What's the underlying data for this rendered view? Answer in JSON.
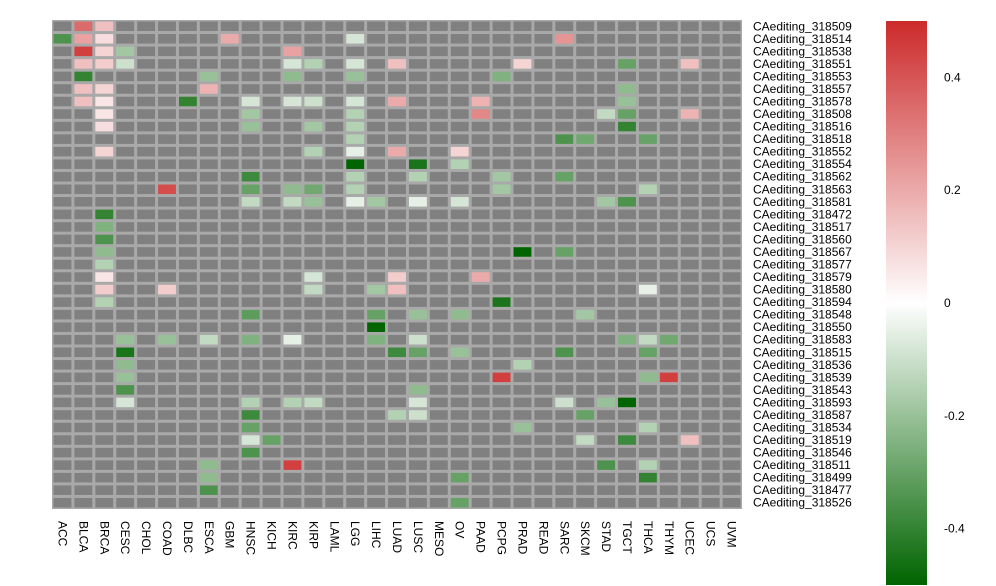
{
  "chart_data": {
    "type": "heatmap",
    "title": "",
    "columns": [
      "ACC",
      "BLCA",
      "BRCA",
      "CESC",
      "CHOL",
      "COAD",
      "DLBC",
      "ESCA",
      "GBM",
      "HNSC",
      "KICH",
      "KIRC",
      "KIRP",
      "LAML",
      "LGG",
      "LIHC",
      "LUAD",
      "LUSC",
      "MESO",
      "OV",
      "PAAD",
      "PCPG",
      "PRAD",
      "READ",
      "SARC",
      "SKCM",
      "STAD",
      "TGCT",
      "THCA",
      "THYM",
      "UCEC",
      "UCS",
      "UVM"
    ],
    "rows": [
      "CAediting_318509",
      "CAediting_318514",
      "CAediting_318538",
      "CAediting_318551",
      "CAediting_318553",
      "CAediting_318557",
      "CAediting_318578",
      "CAediting_318508",
      "CAediting_318516",
      "CAediting_318518",
      "CAediting_318552",
      "CAediting_318554",
      "CAediting_318562",
      "CAediting_318563",
      "CAediting_318581",
      "CAediting_318472",
      "CAediting_318517",
      "CAediting_318560",
      "CAediting_318567",
      "CAediting_318577",
      "CAediting_318579",
      "CAediting_318580",
      "CAediting_318594",
      "CAediting_318548",
      "CAediting_318550",
      "CAediting_318583",
      "CAediting_318515",
      "CAediting_318536",
      "CAediting_318539",
      "CAediting_318543",
      "CAediting_318593",
      "CAediting_318587",
      "CAediting_318534",
      "CAediting_318519",
      "CAediting_318546",
      "CAediting_318511",
      "CAediting_318499",
      "CAediting_318477",
      "CAediting_318526"
    ],
    "cells": [
      [
        0,
        1,
        0.35
      ],
      [
        0,
        2,
        0.15
      ],
      [
        1,
        0,
        -0.35
      ],
      [
        1,
        1,
        0.22
      ],
      [
        1,
        2,
        0.08
      ],
      [
        1,
        8,
        0.2
      ],
      [
        1,
        14,
        -0.08
      ],
      [
        1,
        24,
        0.25
      ],
      [
        2,
        1,
        0.45
      ],
      [
        2,
        2,
        0.1
      ],
      [
        2,
        3,
        -0.18
      ],
      [
        2,
        11,
        0.22
      ],
      [
        3,
        1,
        0.15
      ],
      [
        3,
        2,
        0.12
      ],
      [
        3,
        3,
        -0.1
      ],
      [
        3,
        11,
        -0.08
      ],
      [
        3,
        12,
        -0.15
      ],
      [
        3,
        14,
        -0.08
      ],
      [
        3,
        16,
        0.15
      ],
      [
        3,
        22,
        0.1
      ],
      [
        3,
        27,
        -0.3
      ],
      [
        3,
        30,
        0.15
      ],
      [
        4,
        1,
        -0.4
      ],
      [
        4,
        7,
        -0.2
      ],
      [
        4,
        11,
        -0.22
      ],
      [
        4,
        14,
        -0.2
      ],
      [
        4,
        21,
        -0.25
      ],
      [
        5,
        1,
        0.15
      ],
      [
        5,
        2,
        0.1
      ],
      [
        5,
        7,
        0.18
      ],
      [
        5,
        27,
        -0.22
      ],
      [
        6,
        1,
        0.15
      ],
      [
        6,
        2,
        0.06
      ],
      [
        6,
        6,
        -0.4
      ],
      [
        6,
        9,
        -0.08
      ],
      [
        6,
        11,
        -0.08
      ],
      [
        6,
        12,
        -0.1
      ],
      [
        6,
        14,
        -0.08
      ],
      [
        6,
        16,
        0.2
      ],
      [
        6,
        20,
        0.18
      ],
      [
        6,
        27,
        -0.2
      ],
      [
        7,
        2,
        0.06
      ],
      [
        7,
        9,
        -0.18
      ],
      [
        7,
        14,
        -0.15
      ],
      [
        7,
        20,
        0.28
      ],
      [
        7,
        26,
        -0.12
      ],
      [
        7,
        27,
        -0.3
      ],
      [
        7,
        30,
        0.18
      ],
      [
        8,
        2,
        0.08
      ],
      [
        8,
        9,
        -0.2
      ],
      [
        8,
        12,
        -0.18
      ],
      [
        8,
        14,
        -0.15
      ],
      [
        8,
        27,
        -0.4
      ],
      [
        9,
        14,
        -0.15
      ],
      [
        9,
        24,
        -0.35
      ],
      [
        9,
        25,
        -0.28
      ],
      [
        9,
        28,
        -0.3
      ],
      [
        10,
        2,
        0.1
      ],
      [
        10,
        12,
        -0.15
      ],
      [
        10,
        14,
        -0.05
      ],
      [
        10,
        16,
        0.2
      ],
      [
        10,
        19,
        0.1
      ],
      [
        11,
        14,
        -0.5
      ],
      [
        11,
        17,
        -0.45
      ],
      [
        11,
        19,
        -0.15
      ],
      [
        12,
        9,
        -0.38
      ],
      [
        12,
        14,
        -0.15
      ],
      [
        12,
        17,
        -0.15
      ],
      [
        12,
        21,
        -0.18
      ],
      [
        12,
        24,
        -0.3
      ],
      [
        13,
        5,
        0.42
      ],
      [
        13,
        9,
        -0.3
      ],
      [
        13,
        11,
        -0.22
      ],
      [
        13,
        12,
        -0.28
      ],
      [
        13,
        14,
        -0.15
      ],
      [
        13,
        21,
        -0.18
      ],
      [
        13,
        28,
        -0.15
      ],
      [
        14,
        9,
        -0.12
      ],
      [
        14,
        11,
        -0.12
      ],
      [
        14,
        12,
        -0.2
      ],
      [
        14,
        14,
        -0.05
      ],
      [
        14,
        15,
        -0.18
      ],
      [
        14,
        17,
        -0.05
      ],
      [
        14,
        19,
        -0.08
      ],
      [
        14,
        26,
        -0.18
      ],
      [
        14,
        27,
        -0.35
      ],
      [
        15,
        2,
        -0.4
      ],
      [
        16,
        2,
        -0.25
      ],
      [
        17,
        2,
        -0.35
      ],
      [
        18,
        2,
        -0.22
      ],
      [
        18,
        22,
        -0.5
      ],
      [
        18,
        24,
        -0.3
      ],
      [
        19,
        2,
        -0.15
      ],
      [
        20,
        2,
        0.06
      ],
      [
        20,
        12,
        -0.08
      ],
      [
        20,
        16,
        0.12
      ],
      [
        20,
        20,
        0.2
      ],
      [
        21,
        2,
        0.12
      ],
      [
        21,
        5,
        0.12
      ],
      [
        21,
        12,
        -0.12
      ],
      [
        21,
        15,
        -0.18
      ],
      [
        21,
        16,
        0.15
      ],
      [
        21,
        28,
        -0.05
      ],
      [
        22,
        2,
        -0.15
      ],
      [
        22,
        21,
        -0.45
      ],
      [
        23,
        9,
        -0.32
      ],
      [
        23,
        15,
        -0.3
      ],
      [
        23,
        17,
        -0.2
      ],
      [
        23,
        19,
        -0.22
      ],
      [
        23,
        25,
        -0.18
      ],
      [
        24,
        15,
        -0.5
      ],
      [
        25,
        3,
        -0.2
      ],
      [
        25,
        5,
        -0.2
      ],
      [
        25,
        7,
        -0.12
      ],
      [
        25,
        9,
        -0.25
      ],
      [
        25,
        11,
        -0.05
      ],
      [
        25,
        15,
        -0.25
      ],
      [
        25,
        17,
        -0.1
      ],
      [
        25,
        27,
        -0.25
      ],
      [
        25,
        28,
        -0.12
      ],
      [
        25,
        29,
        -0.28
      ],
      [
        26,
        3,
        -0.45
      ],
      [
        26,
        16,
        -0.38
      ],
      [
        26,
        17,
        -0.3
      ],
      [
        26,
        19,
        -0.2
      ],
      [
        26,
        24,
        -0.35
      ],
      [
        26,
        28,
        -0.3
      ],
      [
        27,
        3,
        -0.22
      ],
      [
        27,
        22,
        -0.15
      ],
      [
        28,
        3,
        -0.2
      ],
      [
        28,
        21,
        0.45
      ],
      [
        28,
        28,
        -0.22
      ],
      [
        28,
        29,
        0.45
      ],
      [
        29,
        3,
        -0.35
      ],
      [
        29,
        17,
        -0.22
      ],
      [
        30,
        3,
        -0.08
      ],
      [
        30,
        9,
        -0.15
      ],
      [
        30,
        11,
        -0.15
      ],
      [
        30,
        12,
        -0.12
      ],
      [
        30,
        17,
        -0.08
      ],
      [
        30,
        24,
        -0.1
      ],
      [
        30,
        26,
        -0.2
      ],
      [
        30,
        27,
        -0.5
      ],
      [
        31,
        9,
        -0.38
      ],
      [
        31,
        16,
        -0.15
      ],
      [
        31,
        17,
        -0.1
      ],
      [
        31,
        25,
        -0.3
      ],
      [
        32,
        9,
        -0.3
      ],
      [
        32,
        22,
        -0.2
      ],
      [
        32,
        28,
        -0.15
      ],
      [
        33,
        9,
        -0.08
      ],
      [
        33,
        10,
        -0.3
      ],
      [
        33,
        25,
        -0.12
      ],
      [
        33,
        27,
        -0.38
      ],
      [
        33,
        30,
        0.15
      ],
      [
        34,
        9,
        -0.35
      ],
      [
        35,
        7,
        -0.22
      ],
      [
        35,
        11,
        0.45
      ],
      [
        35,
        26,
        -0.35
      ],
      [
        35,
        28,
        -0.15
      ],
      [
        36,
        7,
        -0.22
      ],
      [
        36,
        19,
        -0.3
      ],
      [
        36,
        28,
        -0.4
      ],
      [
        37,
        7,
        -0.35
      ],
      [
        38,
        19,
        -0.3
      ]
    ],
    "value_range": [
      -0.5,
      0.5
    ],
    "colorbar": {
      "ticks": [
        0.4,
        0.2,
        0,
        -0.2,
        -0.4
      ],
      "tick_labels": [
        "0.4",
        "0.2",
        "0",
        "-0.2",
        "-0.4"
      ]
    },
    "colors": {
      "high": "#cc2a2a",
      "mid": "#ffffff",
      "low": "#006400",
      "missing": "#808080",
      "grid": "#a9a9a9"
    },
    "grid": true,
    "legend_position": "right"
  }
}
